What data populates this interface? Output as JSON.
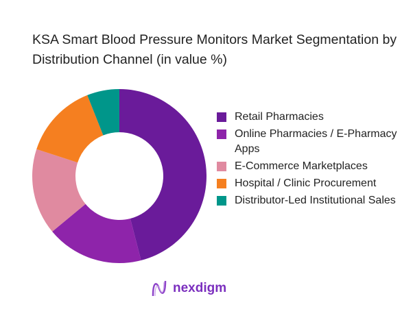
{
  "chart_data": {
    "type": "pie",
    "title": "KSA Smart Blood Pressure Monitors Market Segmentation by Distribution Channel (in value %)",
    "categories": [
      "Retail Pharmacies",
      "Online Pharmacies / E-Pharmacy Apps",
      "E-Commerce Marketplaces",
      "Hospital / Clinic Procurement",
      "Distributor-Led Institutional Sales"
    ],
    "values": [
      46,
      18,
      16,
      14,
      6
    ],
    "colors": [
      "#6a1b9a",
      "#8e24aa",
      "#e08aa0",
      "#f57f20",
      "#00968a"
    ],
    "donut": true,
    "legend": "right"
  },
  "brand": {
    "name": "nexdigm"
  }
}
